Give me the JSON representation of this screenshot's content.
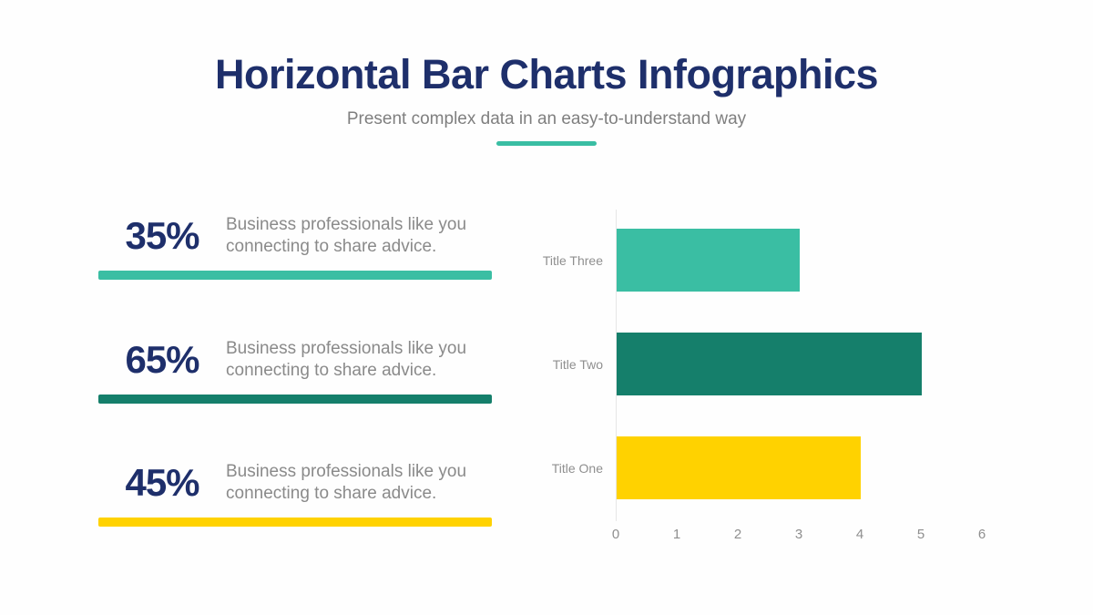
{
  "header": {
    "title": "Horizontal Bar Charts Infographics",
    "subtitle": "Present complex data in an easy-to-understand way"
  },
  "stats": [
    {
      "percent": "35%",
      "description_lines": [
        "Business professionals like you",
        "connecting to share advice."
      ],
      "bar_color": "#3ABEA3"
    },
    {
      "percent": "65%",
      "description_lines": [
        "Business professionals like you",
        "connecting to share advice."
      ],
      "bar_color": "#157F6B"
    },
    {
      "percent": "45%",
      "description_lines": [
        "Business professionals like you",
        "connecting to share advice."
      ],
      "bar_color": "#FFD200"
    }
  ],
  "chart_data": {
    "type": "bar",
    "orientation": "horizontal",
    "title": "",
    "categories": [
      "Title Three",
      "Title Two",
      "Title One"
    ],
    "values": [
      3,
      5,
      4
    ],
    "colors": [
      "#3ABEA3",
      "#157F6B",
      "#FFD200"
    ],
    "xlim": [
      0,
      6
    ],
    "xticks": [
      0,
      1,
      2,
      3,
      4,
      5,
      6
    ],
    "grid": false,
    "legend": "none"
  },
  "colors": {
    "background": "#FEFEFE",
    "title_navy": "#1E2F6B",
    "subtitle_gray": "#7F7F7F",
    "desc_gray": "#8A8A8A",
    "divider_teal": "#3ABEA3",
    "axis_line": "#E7E7E7",
    "axis_text": "#8F8F8F"
  }
}
